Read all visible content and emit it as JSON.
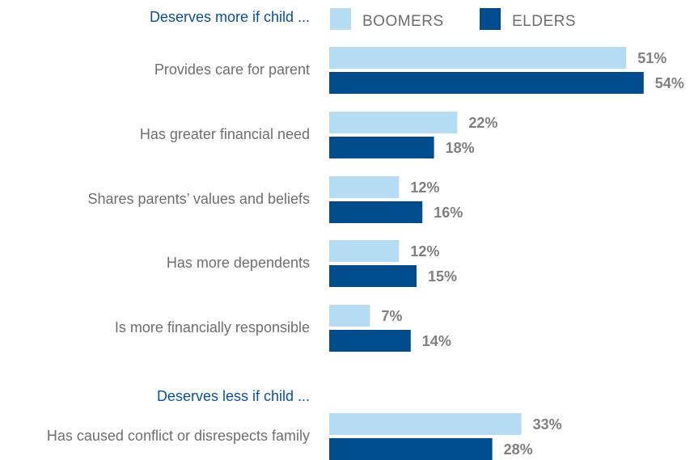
{
  "chart_data": {
    "type": "bar",
    "orientation": "horizontal",
    "legend_position": "top",
    "grid": false,
    "series": [
      {
        "name": "BOOMERS",
        "color": "#b5dcf3"
      },
      {
        "name": "ELDERS",
        "color": "#004c8c"
      }
    ],
    "sections": [
      {
        "title": "Deserves more if child ...",
        "categories": [
          {
            "label": "Provides care for parent",
            "values": [
              51,
              54
            ],
            "value_labels": [
              "51%",
              "54%"
            ]
          },
          {
            "label": "Has greater financial need",
            "values": [
              22,
              18
            ],
            "value_labels": [
              "22%",
              "18%"
            ]
          },
          {
            "label": "Shares parents’ values and beliefs",
            "values": [
              12,
              16
            ],
            "value_labels": [
              "12%",
              "16%"
            ]
          },
          {
            "label": "Has more dependents",
            "values": [
              12,
              15
            ],
            "value_labels": [
              "12%",
              "15%"
            ]
          },
          {
            "label": "Is more financially responsible",
            "values": [
              7,
              14
            ],
            "value_labels": [
              "7%",
              "14%"
            ]
          }
        ]
      },
      {
        "title": "Deserves less if child ...",
        "categories": [
          {
            "label": "Has caused conflict or disrespects family",
            "values": [
              33,
              28
            ],
            "value_labels": [
              "33%",
              "28%"
            ]
          }
        ]
      }
    ]
  },
  "colors": {
    "section_title": "#0b4f91",
    "label_text": "#6d6e71",
    "value_text": "#7d7f82"
  }
}
